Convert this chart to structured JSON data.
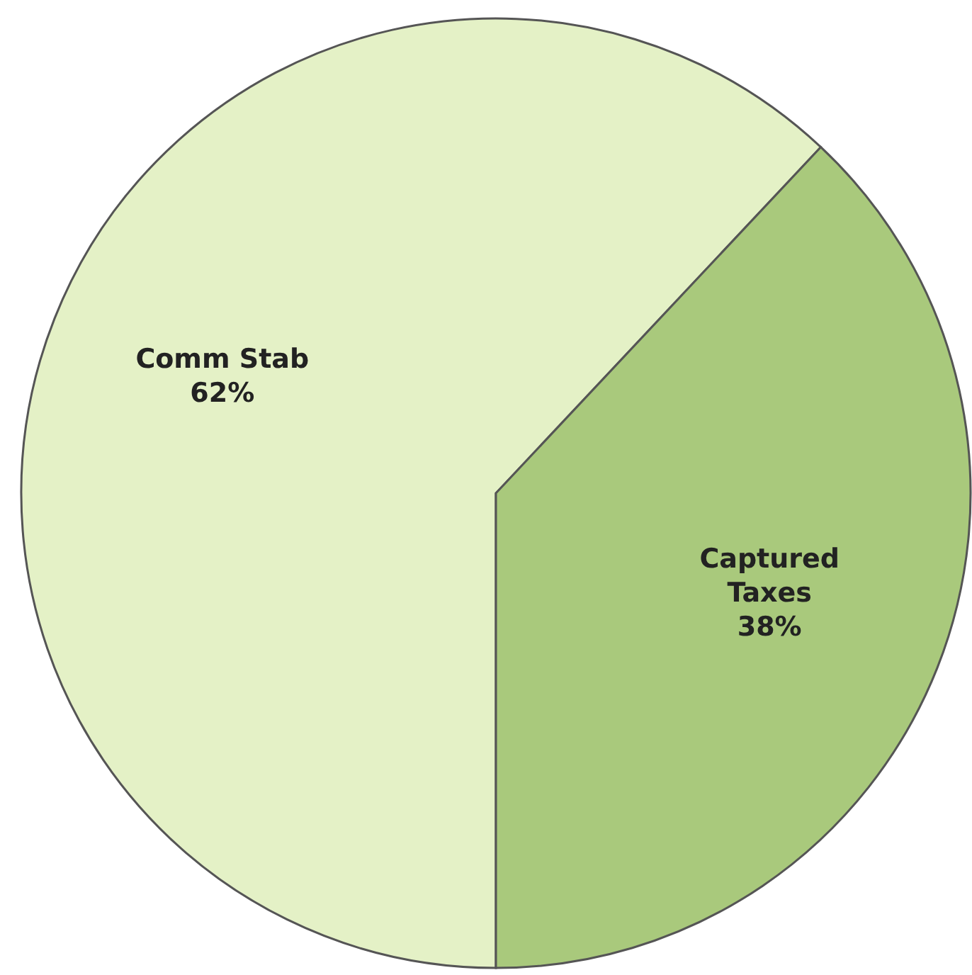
{
  "chart_data": {
    "type": "pie",
    "categories": [
      "Comm Stab",
      "Captured Taxes"
    ],
    "values": [
      62,
      38
    ],
    "colors": [
      "#e4f1c6",
      "#a9c97c"
    ],
    "value_labels": [
      "62%",
      "38%"
    ]
  }
}
